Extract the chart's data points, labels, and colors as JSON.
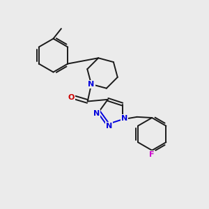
{
  "background_color": "#ebebeb",
  "bond_color": "#1a1a1a",
  "N_color": "#0000dd",
  "O_color": "#cc0000",
  "F_color": "#cc00cc",
  "bond_width": 1.4,
  "font_size_atom": 8,
  "figsize": [
    3.0,
    3.0
  ],
  "dpi": 100,
  "xlim": [
    0,
    10
  ],
  "ylim": [
    0,
    10
  ]
}
